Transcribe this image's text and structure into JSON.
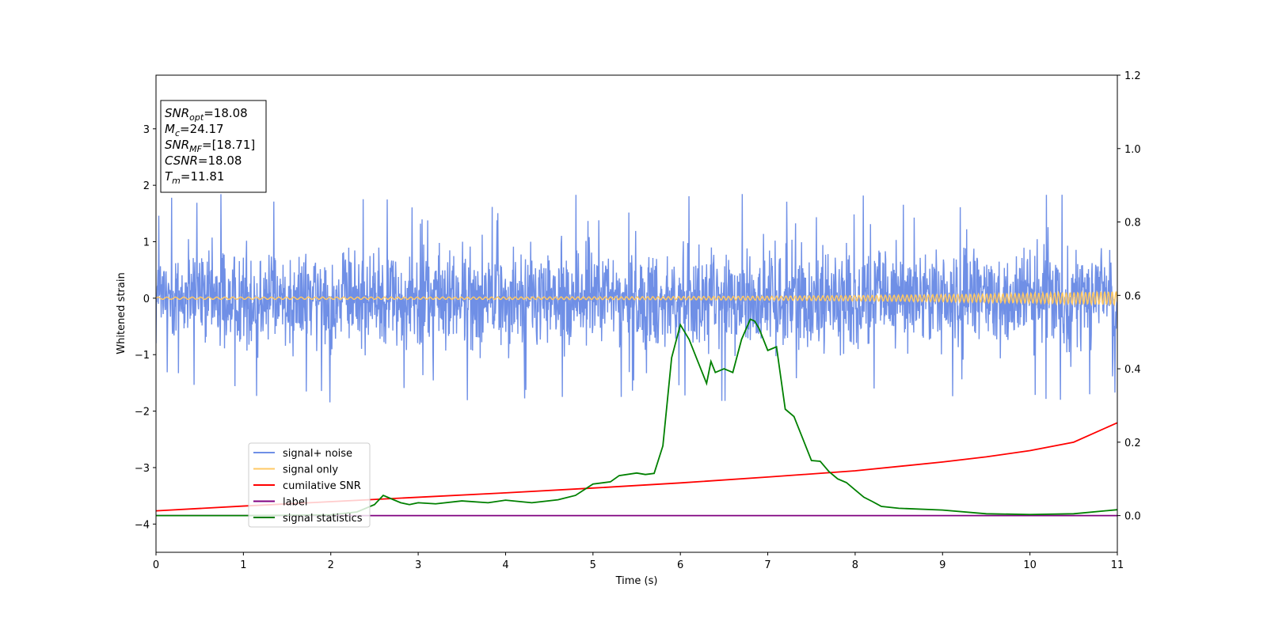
{
  "chart_data": {
    "type": "line",
    "xlabel": "Time (s)",
    "ylabel": "Whitened strain",
    "xlim": [
      0,
      11
    ],
    "ylim": [
      -4.5,
      3.95
    ],
    "y2lim": [
      -0.1,
      1.2
    ],
    "x_ticks": [
      0,
      1,
      2,
      3,
      4,
      5,
      6,
      7,
      8,
      9,
      10,
      11
    ],
    "y_ticks": [
      -4,
      -3,
      -2,
      -1,
      0,
      1,
      2,
      3
    ],
    "y_tick_labels": [
      "−4",
      "−3",
      "−2",
      "−1",
      "0",
      "1",
      "2",
      "3"
    ],
    "y2_ticks": [
      0.0,
      0.2,
      0.4,
      0.6,
      0.8,
      1.0,
      1.2
    ],
    "y2_tick_labels": [
      "0.0",
      "0.2",
      "0.4",
      "0.6",
      "0.8",
      "1.0",
      "1.2"
    ],
    "grid": false,
    "legend_position": "lower-left",
    "info_box": [
      {
        "base": "SNR",
        "sub": "opt",
        "value": "=18.08"
      },
      {
        "base": "M",
        "sub": "c",
        "value": "=24.17"
      },
      {
        "base": "SNR",
        "sub": "MF",
        "value": "=[18.71]"
      },
      {
        "base": "CSNR",
        "sub": "",
        "value": "=18.08"
      },
      {
        "base": "T",
        "sub": "m",
        "value": "=11.81"
      }
    ],
    "series": [
      {
        "name": "signal+ noise",
        "color": "#6f8fe6",
        "axis": "left",
        "kind": "noise",
        "amplitude_envelope": {
          "typical_peak": 1.3,
          "max_peak": 1.85,
          "min_trough": -1.95
        },
        "n_samples": 2400
      },
      {
        "name": "signal only",
        "color": "#ffc864",
        "axis": "left",
        "kind": "chirp",
        "amplitude_start": 0.02,
        "amplitude_end": 0.12
      },
      {
        "name": "cumilative SNR",
        "color": "#ff0000",
        "axis": "right",
        "x": [
          0,
          1,
          2,
          3,
          4,
          5,
          6,
          7,
          8,
          9,
          9.5,
          10,
          10.5,
          11
        ],
        "values": [
          0.013,
          0.026,
          0.038,
          0.05,
          0.062,
          0.075,
          0.089,
          0.105,
          0.122,
          0.146,
          0.16,
          0.177,
          0.2,
          0.253
        ]
      },
      {
        "name": "label",
        "color": "#800080",
        "axis": "right",
        "x": [
          0,
          11
        ],
        "values": [
          0.0,
          0.0
        ]
      },
      {
        "name": "signal statistics",
        "color": "#008000",
        "axis": "right",
        "x": [
          0,
          1,
          2,
          2.3,
          2.5,
          2.6,
          2.7,
          2.8,
          2.9,
          3.0,
          3.2,
          3.5,
          3.8,
          4.0,
          4.3,
          4.6,
          4.8,
          5.0,
          5.2,
          5.3,
          5.5,
          5.6,
          5.7,
          5.8,
          5.9,
          6.0,
          6.1,
          6.2,
          6.3,
          6.35,
          6.4,
          6.5,
          6.6,
          6.7,
          6.8,
          6.85,
          6.9,
          7.0,
          7.1,
          7.2,
          7.3,
          7.4,
          7.5,
          7.6,
          7.7,
          7.8,
          7.9,
          8.0,
          8.1,
          8.2,
          8.3,
          8.5,
          9.0,
          9.5,
          10.0,
          10.5,
          11.0
        ],
        "values": [
          0.0,
          0.0,
          0.002,
          0.01,
          0.03,
          0.055,
          0.045,
          0.035,
          0.03,
          0.035,
          0.032,
          0.04,
          0.035,
          0.042,
          0.035,
          0.043,
          0.055,
          0.086,
          0.092,
          0.109,
          0.116,
          0.112,
          0.115,
          0.19,
          0.43,
          0.52,
          0.48,
          0.42,
          0.36,
          0.42,
          0.39,
          0.4,
          0.39,
          0.48,
          0.535,
          0.53,
          0.51,
          0.45,
          0.46,
          0.29,
          0.27,
          0.21,
          0.15,
          0.148,
          0.12,
          0.1,
          0.09,
          0.07,
          0.05,
          0.038,
          0.025,
          0.02,
          0.015,
          0.005,
          0.003,
          0.005,
          0.016
        ]
      }
    ]
  }
}
